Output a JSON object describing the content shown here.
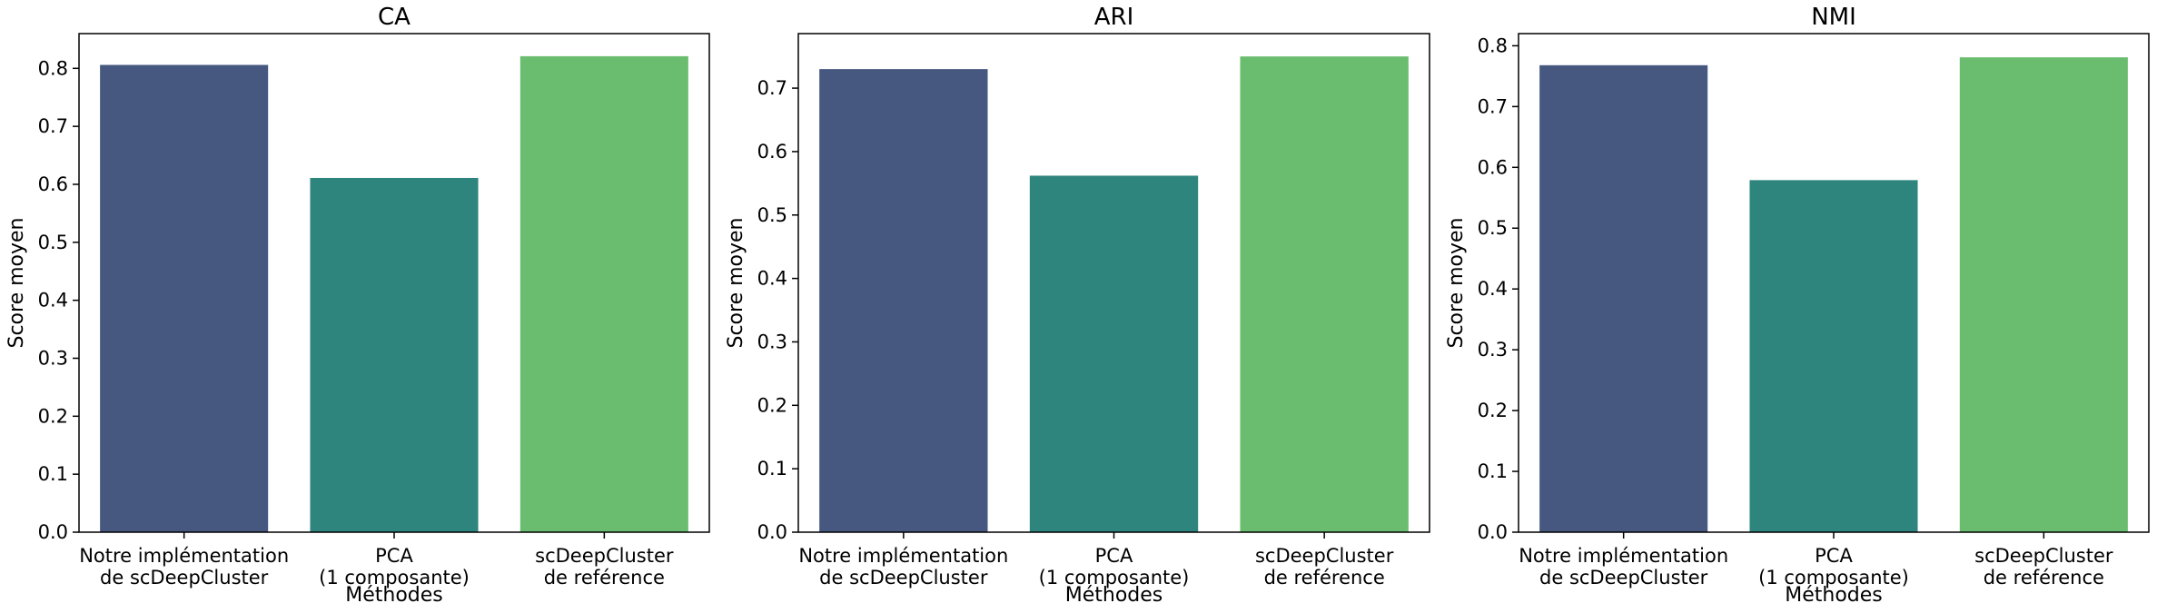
{
  "chart_data": [
    {
      "type": "bar",
      "title": "CA",
      "xlabel": "Méthodes",
      "ylabel": "Score moyen",
      "categories": [
        [
          "Notre implémentation",
          "de scDeepCluster"
        ],
        [
          "PCA",
          "(1 composante)"
        ],
        [
          "scDeepCluster",
          "de reférence"
        ]
      ],
      "values": [
        0.806,
        0.611,
        0.821
      ],
      "colors": [
        "#46587f",
        "#2e857e",
        "#6abd6e"
      ],
      "ylim": [
        0,
        0.86
      ],
      "yticks": [
        "0.0",
        "0.1",
        "0.2",
        "0.3",
        "0.4",
        "0.5",
        "0.6",
        "0.7",
        "0.8"
      ]
    },
    {
      "type": "bar",
      "title": "ARI",
      "xlabel": "Méthodes",
      "ylabel": "Score moyen",
      "categories": [
        [
          "Notre implémentation",
          "de scDeepCluster"
        ],
        [
          "PCA",
          "(1 composante)"
        ],
        [
          "scDeepCluster",
          "de reférence"
        ]
      ],
      "values": [
        0.73,
        0.562,
        0.75
      ],
      "colors": [
        "#46587f",
        "#2e857e",
        "#6abd6e"
      ],
      "ylim": [
        0,
        0.786
      ],
      "yticks": [
        "0.0",
        "0.1",
        "0.2",
        "0.3",
        "0.4",
        "0.5",
        "0.6",
        "0.7"
      ]
    },
    {
      "type": "bar",
      "title": "NMI",
      "xlabel": "Méthodes",
      "ylabel": "Score moyen",
      "categories": [
        [
          "Notre implémentation",
          "de scDeepCluster"
        ],
        [
          "PCA",
          "(1 composante)"
        ],
        [
          "scDeepCluster",
          "de reférence"
        ]
      ],
      "values": [
        0.768,
        0.579,
        0.781
      ],
      "colors": [
        "#46587f",
        "#2e857e",
        "#6abd6e"
      ],
      "ylim": [
        0,
        0.82
      ],
      "yticks": [
        "0.0",
        "0.1",
        "0.2",
        "0.3",
        "0.4",
        "0.5",
        "0.6",
        "0.7",
        "0.8"
      ]
    }
  ]
}
